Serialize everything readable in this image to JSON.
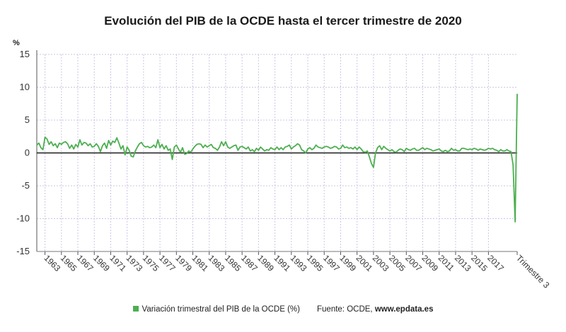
{
  "chart_data": {
    "type": "line",
    "title": "Evolución del PIB de la OCDE hasta el tercer trimestre de 2020",
    "ylabel": "%",
    "xlabel": "",
    "ylim": [
      -15,
      15
    ],
    "yticks": [
      -15,
      -10,
      -5,
      0,
      5,
      10,
      15
    ],
    "x_tick_labels": [
      "1963",
      "1965",
      "1967",
      "1969",
      "1971",
      "1973",
      "1975",
      "1977",
      "1979",
      "1981",
      "1983",
      "1985",
      "1987",
      "1989",
      "1991",
      "1993",
      "1995",
      "1997",
      "1999",
      "2001",
      "2003",
      "2005",
      "2007",
      "2009",
      "2011",
      "2013",
      "2015",
      "2017",
      "Trimestre 3"
    ],
    "x_start": 1962.0,
    "x_end": 2020.5,
    "series": [
      {
        "name": "Variación trimestral del PIB de la OCDE (%)",
        "color": "#4caf50",
        "points": [
          [
            1962.0,
            1.2
          ],
          [
            1962.25,
            1.5
          ],
          [
            1962.5,
            0.8
          ],
          [
            1962.75,
            0.5
          ],
          [
            1963.0,
            2.4
          ],
          [
            1963.25,
            2.1
          ],
          [
            1963.5,
            1.3
          ],
          [
            1963.75,
            1.7
          ],
          [
            1964.0,
            1.1
          ],
          [
            1964.25,
            1.4
          ],
          [
            1964.5,
            0.8
          ],
          [
            1964.75,
            1.5
          ],
          [
            1965.0,
            1.3
          ],
          [
            1965.25,
            1.6
          ],
          [
            1965.5,
            1.7
          ],
          [
            1965.75,
            1.4
          ],
          [
            1966.0,
            0.7
          ],
          [
            1966.25,
            1.2
          ],
          [
            1966.5,
            0.6
          ],
          [
            1966.75,
            1.3
          ],
          [
            1967.0,
            0.9
          ],
          [
            1967.25,
            2.0
          ],
          [
            1967.5,
            1.2
          ],
          [
            1967.75,
            1.6
          ],
          [
            1968.0,
            1.5
          ],
          [
            1968.25,
            1.1
          ],
          [
            1968.5,
            1.4
          ],
          [
            1968.75,
            0.9
          ],
          [
            1969.0,
            1.0
          ],
          [
            1969.25,
            1.4
          ],
          [
            1969.5,
            1.0
          ],
          [
            1969.75,
            0.2
          ],
          [
            1970.0,
            1.1
          ],
          [
            1970.25,
            1.5
          ],
          [
            1970.5,
            0.7
          ],
          [
            1970.75,
            1.9
          ],
          [
            1971.0,
            1.2
          ],
          [
            1971.25,
            1.8
          ],
          [
            1971.5,
            1.6
          ],
          [
            1971.75,
            2.3
          ],
          [
            1972.0,
            1.5
          ],
          [
            1972.25,
            0.6
          ],
          [
            1972.5,
            1.1
          ],
          [
            1972.75,
            -0.3
          ],
          [
            1973.0,
            0.9
          ],
          [
            1973.25,
            0.4
          ],
          [
            1973.5,
            -0.5
          ],
          [
            1973.75,
            -0.6
          ],
          [
            1974.0,
            0.3
          ],
          [
            1974.25,
            0.9
          ],
          [
            1974.5,
            1.4
          ],
          [
            1974.75,
            1.6
          ],
          [
            1975.0,
            1.1
          ],
          [
            1975.25,
            0.9
          ],
          [
            1975.5,
            1.0
          ],
          [
            1975.75,
            0.8
          ],
          [
            1976.0,
            0.9
          ],
          [
            1976.25,
            1.2
          ],
          [
            1976.5,
            0.8
          ],
          [
            1976.75,
            2.0
          ],
          [
            1977.0,
            0.8
          ],
          [
            1977.25,
            1.3
          ],
          [
            1977.5,
            0.6
          ],
          [
            1977.75,
            1.1
          ],
          [
            1978.0,
            0.4
          ],
          [
            1978.25,
            0.6
          ],
          [
            1978.5,
            -1.0
          ],
          [
            1978.75,
            0.9
          ],
          [
            1979.0,
            1.2
          ],
          [
            1979.25,
            0.6
          ],
          [
            1979.5,
            0.1
          ],
          [
            1979.75,
            0.8
          ],
          [
            1980.0,
            -0.2
          ],
          [
            1980.25,
            -0.1
          ],
          [
            1980.5,
            0.3
          ],
          [
            1980.75,
            0.1
          ],
          [
            1981.0,
            0.6
          ],
          [
            1981.25,
            1.0
          ],
          [
            1981.5,
            1.3
          ],
          [
            1981.75,
            1.4
          ],
          [
            1982.0,
            1.3
          ],
          [
            1982.25,
            0.8
          ],
          [
            1982.5,
            1.2
          ],
          [
            1982.75,
            0.9
          ],
          [
            1983.0,
            1.1
          ],
          [
            1983.25,
            1.3
          ],
          [
            1983.5,
            0.8
          ],
          [
            1983.75,
            0.7
          ],
          [
            1984.0,
            0.4
          ],
          [
            1984.25,
            0.9
          ],
          [
            1984.5,
            1.7
          ],
          [
            1984.75,
            1.1
          ],
          [
            1985.0,
            1.7
          ],
          [
            1985.25,
            0.9
          ],
          [
            1985.5,
            0.7
          ],
          [
            1985.75,
            0.9
          ],
          [
            1986.0,
            1.1
          ],
          [
            1986.25,
            1.2
          ],
          [
            1986.5,
            0.4
          ],
          [
            1986.75,
            0.9
          ],
          [
            1987.0,
            1.0
          ],
          [
            1987.25,
            0.8
          ],
          [
            1987.5,
            0.6
          ],
          [
            1987.75,
            0.9
          ],
          [
            1988.0,
            0.3
          ],
          [
            1988.25,
            0.5
          ],
          [
            1988.5,
            0.2
          ],
          [
            1988.75,
            0.7
          ],
          [
            1989.0,
            0.4
          ],
          [
            1989.25,
            0.9
          ],
          [
            1989.5,
            0.6
          ],
          [
            1989.75,
            0.3
          ],
          [
            1990.0,
            0.5
          ],
          [
            1990.25,
            0.4
          ],
          [
            1990.5,
            0.8
          ],
          [
            1990.75,
            0.6
          ],
          [
            1991.0,
            0.5
          ],
          [
            1991.25,
            0.9
          ],
          [
            1991.5,
            0.5
          ],
          [
            1991.75,
            0.8
          ],
          [
            1992.0,
            0.5
          ],
          [
            1992.25,
            0.9
          ],
          [
            1992.5,
            1.0
          ],
          [
            1992.75,
            1.2
          ],
          [
            1993.0,
            0.6
          ],
          [
            1993.25,
            0.9
          ],
          [
            1993.5,
            1.1
          ],
          [
            1993.75,
            1.4
          ],
          [
            1994.0,
            1.2
          ],
          [
            1994.25,
            0.5
          ],
          [
            1994.5,
            0.3
          ],
          [
            1994.75,
            0.0
          ],
          [
            1995.0,
            0.6
          ],
          [
            1995.25,
            0.8
          ],
          [
            1995.5,
            0.5
          ],
          [
            1995.75,
            0.7
          ],
          [
            1996.0,
            1.2
          ],
          [
            1996.25,
            0.9
          ],
          [
            1996.5,
            0.8
          ],
          [
            1996.75,
            0.7
          ],
          [
            1997.0,
            0.9
          ],
          [
            1997.25,
            1.0
          ],
          [
            1997.5,
            0.9
          ],
          [
            1997.75,
            0.7
          ],
          [
            1998.0,
            0.8
          ],
          [
            1998.25,
            1.0
          ],
          [
            1998.5,
            0.9
          ],
          [
            1998.75,
            0.6
          ],
          [
            1999.0,
            0.7
          ],
          [
            1999.25,
            1.2
          ],
          [
            1999.5,
            0.8
          ],
          [
            1999.75,
            0.9
          ],
          [
            2000.0,
            0.7
          ],
          [
            2000.25,
            0.8
          ],
          [
            2000.5,
            0.6
          ],
          [
            2000.75,
            0.9
          ],
          [
            2001.0,
            0.5
          ],
          [
            2001.25,
            0.9
          ],
          [
            2001.5,
            0.6
          ],
          [
            2001.75,
            0.2
          ],
          [
            2002.0,
            0.1
          ],
          [
            2002.25,
            0.3
          ],
          [
            2002.5,
            -0.6
          ],
          [
            2002.75,
            -1.6
          ],
          [
            2003.0,
            -2.2
          ],
          [
            2003.25,
            0.0
          ],
          [
            2003.5,
            0.8
          ],
          [
            2003.75,
            1.1
          ],
          [
            2004.0,
            0.5
          ],
          [
            2004.25,
            1.0
          ],
          [
            2004.5,
            0.7
          ],
          [
            2004.75,
            0.5
          ],
          [
            2005.0,
            0.3
          ],
          [
            2005.25,
            0.5
          ],
          [
            2005.5,
            0.2
          ],
          [
            2005.75,
            0.1
          ],
          [
            2006.0,
            0.4
          ],
          [
            2006.25,
            0.6
          ],
          [
            2006.5,
            0.5
          ],
          [
            2006.75,
            0.2
          ],
          [
            2007.0,
            0.7
          ],
          [
            2007.25,
            0.5
          ],
          [
            2007.5,
            0.4
          ],
          [
            2007.75,
            0.6
          ],
          [
            2008.0,
            0.7
          ],
          [
            2008.25,
            0.4
          ],
          [
            2008.5,
            0.4
          ],
          [
            2008.75,
            0.6
          ],
          [
            2009.0,
            0.8
          ],
          [
            2009.25,
            0.5
          ],
          [
            2009.5,
            0.7
          ],
          [
            2009.75,
            0.6
          ],
          [
            2010.0,
            0.5
          ],
          [
            2010.25,
            0.3
          ],
          [
            2010.5,
            0.4
          ],
          [
            2010.75,
            0.5
          ],
          [
            2011.0,
            0.6
          ],
          [
            2011.25,
            0.3
          ],
          [
            2011.5,
            0.2
          ],
          [
            2011.75,
            0.4
          ],
          [
            2012.0,
            0.2
          ],
          [
            2012.25,
            0.3
          ],
          [
            2012.5,
            0.7
          ],
          [
            2012.75,
            0.4
          ],
          [
            2013.0,
            0.5
          ],
          [
            2013.25,
            0.3
          ],
          [
            2013.5,
            0.3
          ],
          [
            2013.75,
            0.7
          ],
          [
            2014.0,
            0.7
          ],
          [
            2014.25,
            0.6
          ],
          [
            2014.5,
            0.5
          ],
          [
            2014.75,
            0.6
          ],
          [
            2015.0,
            0.5
          ],
          [
            2015.25,
            0.7
          ],
          [
            2015.5,
            0.6
          ],
          [
            2015.75,
            0.4
          ],
          [
            2016.0,
            0.6
          ],
          [
            2016.25,
            0.5
          ],
          [
            2016.5,
            0.4
          ],
          [
            2016.75,
            0.5
          ],
          [
            2017.0,
            0.7
          ],
          [
            2017.25,
            0.6
          ],
          [
            2017.5,
            0.7
          ],
          [
            2017.75,
            0.5
          ],
          [
            2018.0,
            0.4
          ],
          [
            2018.25,
            0.2
          ],
          [
            2018.5,
            0.5
          ],
          [
            2018.75,
            0.3
          ],
          [
            2019.0,
            0.3
          ],
          [
            2019.25,
            0.5
          ],
          [
            2019.5,
            0.3
          ],
          [
            2019.75,
            0.2
          ],
          [
            2020.0,
            -1.8
          ],
          [
            2020.25,
            -10.5
          ],
          [
            2020.5,
            9.0
          ]
        ]
      }
    ],
    "legend": {
      "series_label": "Variación trimestral del PIB de la OCDE (%)",
      "source_prefix": "Fuente: OCDE, ",
      "source_site": "www.epdata.es",
      "position": "bottom-center"
    },
    "grid": true
  }
}
